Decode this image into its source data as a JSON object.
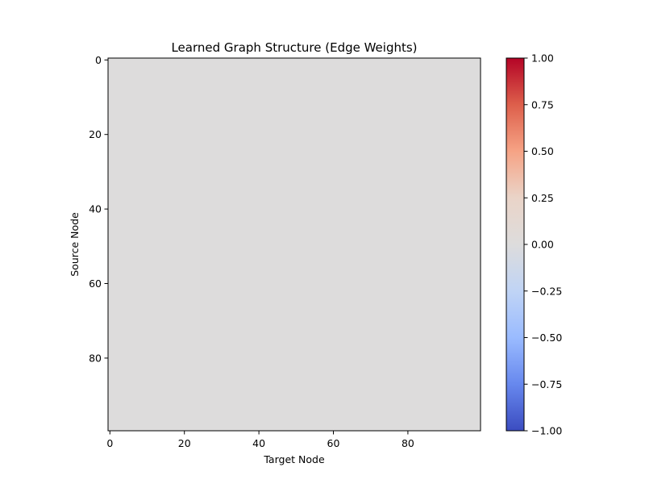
{
  "chart_data": {
    "type": "heatmap",
    "title": "Learned Graph Structure (Edge Weights)",
    "xlabel": "Target Node",
    "ylabel": "Source Node",
    "n_rows": 100,
    "n_cols": 100,
    "fill_value": 0.0,
    "fill_color": "#dddcdc",
    "xlim": [
      -0.5,
      99.5
    ],
    "ylim": [
      99.5,
      -0.5
    ],
    "x_ticks": [
      0,
      20,
      40,
      60,
      80
    ],
    "y_ticks": [
      0,
      20,
      40,
      60,
      80
    ],
    "x_tick_labels": [
      "0",
      "20",
      "40",
      "60",
      "80"
    ],
    "y_tick_labels": [
      "0",
      "20",
      "40",
      "60",
      "80"
    ],
    "colormap": "coolwarm",
    "vmin": -1.0,
    "vmax": 1.0,
    "colorbar": {
      "ticks": [
        1.0,
        0.75,
        0.5,
        0.25,
        0.0,
        -0.25,
        -0.5,
        -0.75,
        -1.0
      ],
      "tick_labels": [
        "1.00",
        "0.75",
        "0.50",
        "0.25",
        "0.00",
        "−0.25",
        "−0.50",
        "−0.75",
        "−1.00"
      ],
      "gradient": [
        "#b40426",
        "#dd5f4b",
        "#f6a385",
        "#ead4c8",
        "#dddcdc",
        "#c0d4f5",
        "#9abbff",
        "#6788ee",
        "#3b4cc0"
      ]
    }
  }
}
